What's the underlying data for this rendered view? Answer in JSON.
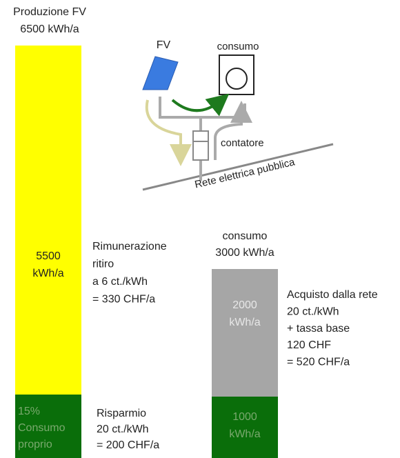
{
  "production": {
    "title": [
      "Produzione FV",
      "6500 kWh/a"
    ],
    "fed_in": [
      "5500",
      "kWh/a"
    ],
    "self_use": [
      "15%",
      "Consumo",
      "proprio"
    ]
  },
  "feed_in_note": [
    "Rimunerazione",
    "ritiro",
    "a 6 ct./kWh",
    "= 330 CHF/a"
  ],
  "savings_note": [
    "Risparmio",
    "20 ct./kWh",
    "= 200 CHF/a"
  ],
  "consumption": {
    "title": [
      "consumo",
      "3000 kWh/a"
    ],
    "from_grid": [
      "2000",
      "kWh/a"
    ],
    "own": [
      "1000",
      "kWh/a"
    ]
  },
  "purchase_note": [
    "Acquisto dalla rete",
    "20 ct./kWh",
    "+ tassa base",
    "120 CHF",
    "= 520 CHF/a"
  ],
  "schematic": {
    "pv": "FV",
    "consumer": "consumo",
    "meter": "contatore",
    "grid": "Rete elettrica pubblica"
  }
}
